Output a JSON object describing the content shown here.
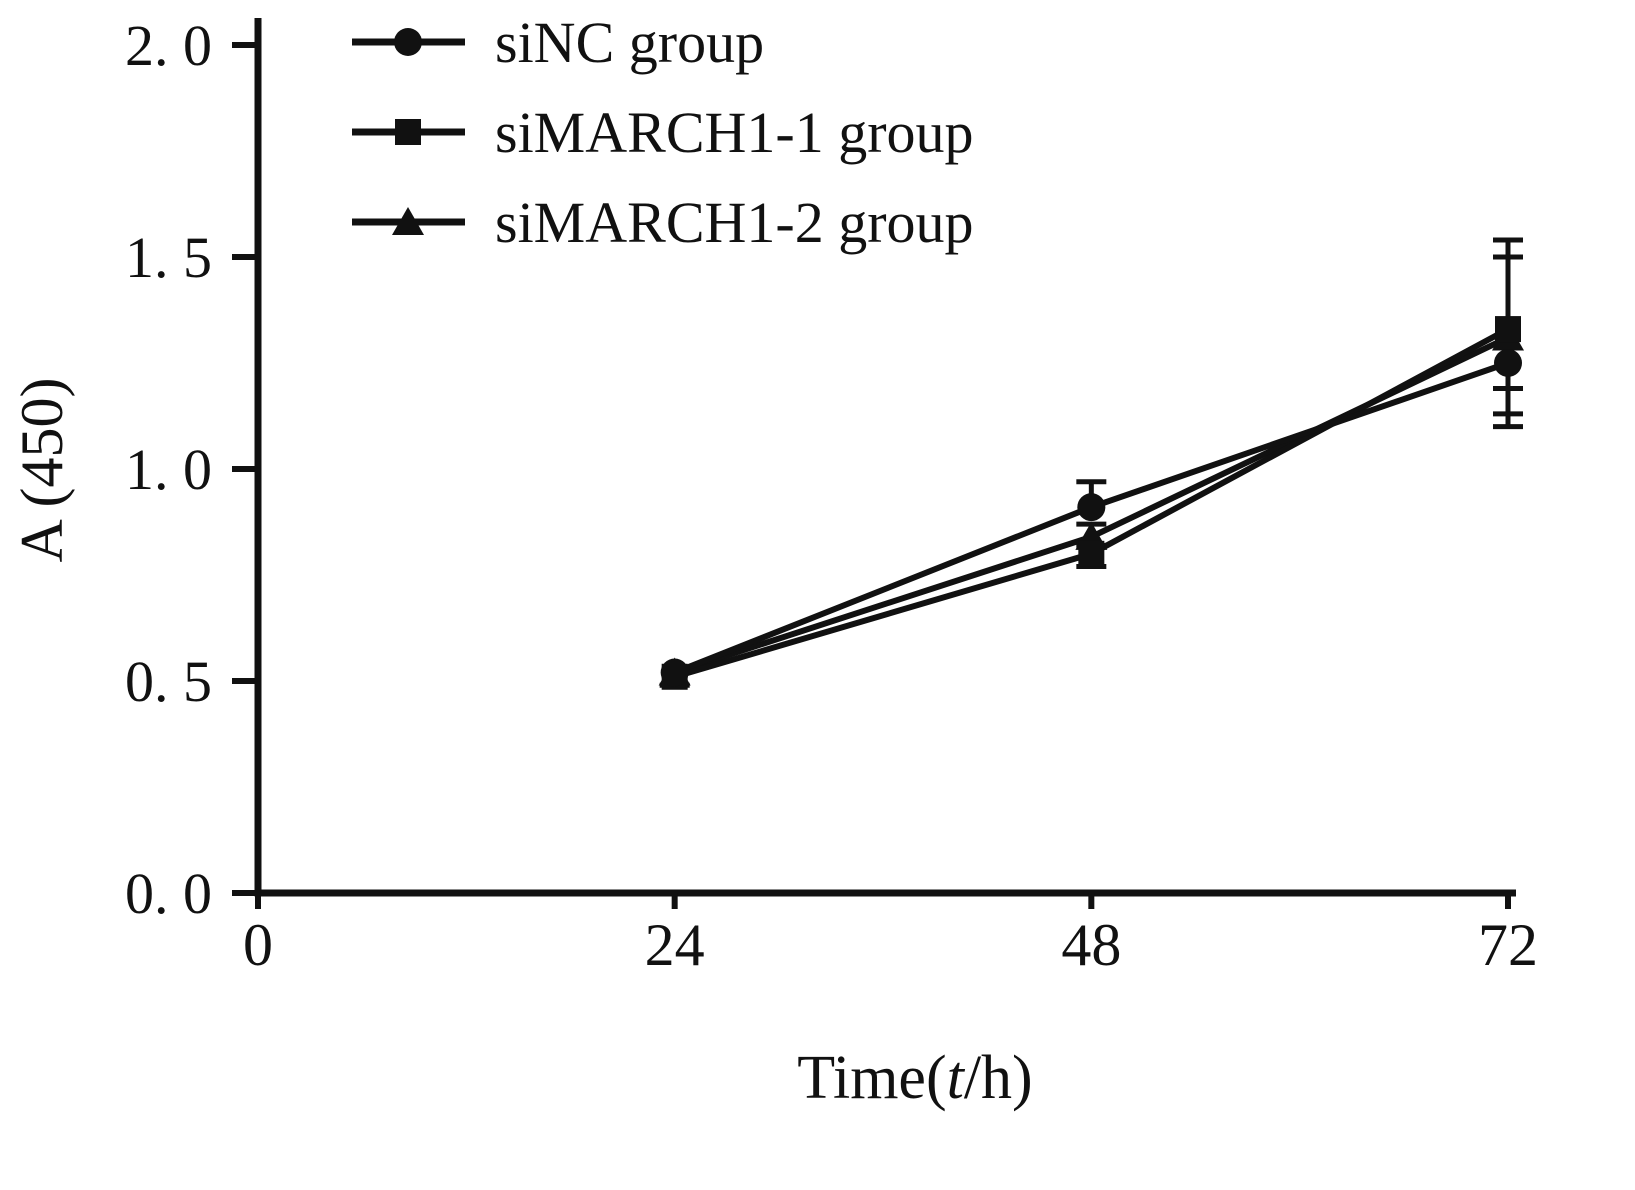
{
  "figure": {
    "background": "#ffffff",
    "ink_color": "#111111"
  },
  "chart_data": {
    "type": "line",
    "title": "",
    "xlabel": "Time(t/h)",
    "xlabel_parts": {
      "pre": "Time(",
      "italic": "t",
      "post": "/h)"
    },
    "ylabel": "A (450)",
    "xlim": [
      0,
      72
    ],
    "ylim": [
      0.0,
      2.0
    ],
    "xticks": [
      0,
      24,
      48,
      72
    ],
    "xtick_labels": [
      "0",
      "24",
      "48",
      "72"
    ],
    "yticks": [
      0.0,
      0.5,
      1.0,
      1.5,
      2.0
    ],
    "ytick_labels": [
      "0. 0",
      "0. 5",
      "1. 0",
      "1. 5",
      "2. 0"
    ],
    "grid": false,
    "legend_position": "top-left-inside",
    "x": [
      24,
      48,
      72
    ],
    "series": [
      {
        "name": "siNC group",
        "marker": "circle",
        "values": [
          0.52,
          0.91,
          1.25
        ],
        "err_up": [
          0,
          0.06,
          0
        ],
        "err_down": [
          0,
          0,
          0.12
        ]
      },
      {
        "name": "siMARCH1-1 group",
        "marker": "square",
        "values": [
          0.51,
          0.8,
          1.33
        ],
        "err_up": [
          0,
          0.02,
          0.21
        ],
        "err_down": [
          0.02,
          0.03,
          0.14
        ]
      },
      {
        "name": "siMARCH1-2 group",
        "marker": "triangle",
        "values": [
          0.52,
          0.84,
          1.31
        ],
        "err_up": [
          0,
          0.03,
          0.19
        ],
        "err_down": [
          0,
          0,
          0.21
        ]
      }
    ]
  }
}
